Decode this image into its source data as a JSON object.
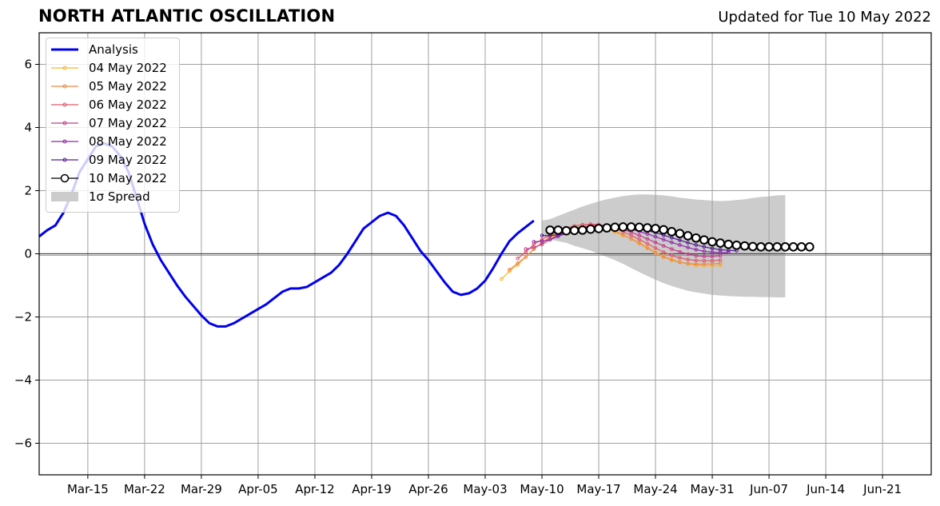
{
  "header": {
    "title": "NORTH ATLANTIC OSCILLATION",
    "updated": "Updated for Tue 10 May 2022"
  },
  "legend": {
    "items": [
      {
        "label": "Analysis",
        "color": "#0000ee",
        "style": "thick-line"
      },
      {
        "label": "04 May 2022",
        "color": "#fcb52c",
        "style": "marker-line"
      },
      {
        "label": "05 May 2022",
        "color": "#ed8a44",
        "style": "marker-line"
      },
      {
        "label": "06 May 2022",
        "color": "#e0576a",
        "style": "marker-line"
      },
      {
        "label": "07 May 2022",
        "color": "#c23d8c",
        "style": "marker-line"
      },
      {
        "label": "08 May 2022",
        "color": "#8e2ba6",
        "style": "marker-line"
      },
      {
        "label": "09 May 2022",
        "color": "#531b93",
        "style": "marker-line"
      },
      {
        "label": "10 May 2022",
        "color": "#000000",
        "style": "open-marker"
      },
      {
        "label": "1σ Spread",
        "color": "#cccccc",
        "style": "patch"
      }
    ]
  },
  "chart_data": {
    "type": "line",
    "title": "NORTH ATLANTIC OSCILLATION",
    "xlabel": "",
    "ylabel": "",
    "xlim": [
      "2022-03-09",
      "2022-06-27"
    ],
    "ylim": [
      -7,
      7
    ],
    "yticks": [
      -6,
      -4,
      -2,
      0,
      2,
      4,
      6
    ],
    "ytick_labels": [
      "−6",
      "−4",
      "−2",
      "0",
      "2",
      "4",
      "6"
    ],
    "xtick_dates": [
      "2022-03-15",
      "2022-03-22",
      "2022-03-29",
      "2022-04-05",
      "2022-04-12",
      "2022-04-19",
      "2022-04-26",
      "2022-05-03",
      "2022-05-10",
      "2022-05-17",
      "2022-05-24",
      "2022-05-31",
      "2022-06-07",
      "2022-06-14",
      "2022-06-21"
    ],
    "xtick_labels": [
      "Mar-15",
      "Mar-22",
      "Mar-29",
      "Apr-05",
      "Apr-12",
      "Apr-19",
      "Apr-26",
      "May-03",
      "May-10",
      "May-17",
      "May-24",
      "May-31",
      "Jun-07",
      "Jun-14",
      "Jun-21"
    ],
    "grid": true,
    "legend_position": "top-left",
    "analysis": {
      "name": "Analysis",
      "color": "#0000ee",
      "start": "2022-03-09",
      "values": [
        0.55,
        0.75,
        0.9,
        1.3,
        1.9,
        2.6,
        3.0,
        3.4,
        3.5,
        3.4,
        3.1,
        2.6,
        1.8,
        0.95,
        0.3,
        -0.2,
        -0.6,
        -1.0,
        -1.35,
        -1.65,
        -1.95,
        -2.2,
        -2.3,
        -2.3,
        -2.2,
        -2.05,
        -1.9,
        -1.75,
        -1.6,
        -1.4,
        -1.2,
        -1.1,
        -1.1,
        -1.05,
        -0.9,
        -0.75,
        -0.6,
        -0.35,
        0.0,
        0.4,
        0.8,
        1.0,
        1.2,
        1.3,
        1.2,
        0.9,
        0.5,
        0.1,
        -0.2,
        -0.55,
        -0.9,
        -1.2,
        -1.3,
        -1.25,
        -1.1,
        -0.85,
        -0.45,
        0.0,
        0.4,
        0.65,
        0.85,
        1.05
      ]
    },
    "spread": {
      "name": "1σ Spread",
      "color": "#cccccc",
      "start": "2022-05-10",
      "upper": [
        1.05,
        1.1,
        1.2,
        1.3,
        1.4,
        1.5,
        1.58,
        1.66,
        1.73,
        1.78,
        1.83,
        1.86,
        1.88,
        1.88,
        1.87,
        1.85,
        1.82,
        1.78,
        1.75,
        1.72,
        1.7,
        1.68,
        1.67,
        1.68,
        1.7,
        1.73,
        1.77,
        1.8,
        1.82,
        1.85,
        1.86
      ],
      "lower": [
        0.55,
        0.45,
        0.4,
        0.35,
        0.25,
        0.18,
        0.1,
        0.0,
        -0.1,
        -0.2,
        -0.32,
        -0.45,
        -0.58,
        -0.7,
        -0.82,
        -0.93,
        -1.02,
        -1.1,
        -1.17,
        -1.22,
        -1.26,
        -1.3,
        -1.32,
        -1.34,
        -1.35,
        -1.36,
        -1.36,
        -1.37,
        -1.37,
        -1.38,
        -1.38
      ]
    },
    "series": [
      {
        "name": "04 May 2022",
        "color": "#fcb52c",
        "start": "2022-05-05",
        "values": [
          -0.8,
          -0.55,
          -0.35,
          -0.1,
          0.15,
          0.35,
          0.5,
          0.65,
          0.75,
          0.82,
          0.87,
          0.88,
          0.85,
          0.78,
          0.68,
          0.58,
          0.48,
          0.35,
          0.2,
          0.05,
          -0.08,
          -0.18,
          -0.26,
          -0.32,
          -0.36,
          -0.38,
          -0.38,
          -0.37
        ]
      },
      {
        "name": "05 May 2022",
        "color": "#ed8a44",
        "start": "2022-05-06",
        "values": [
          -0.5,
          -0.3,
          -0.1,
          0.15,
          0.35,
          0.55,
          0.7,
          0.8,
          0.88,
          0.92,
          0.93,
          0.9,
          0.82,
          0.72,
          0.6,
          0.47,
          0.33,
          0.18,
          0.03,
          -0.1,
          -0.2,
          -0.27,
          -0.31,
          -0.33,
          -0.33,
          -0.32,
          -0.3
        ]
      },
      {
        "name": "06 May 2022",
        "color": "#e0576a",
        "start": "2022-05-07",
        "values": [
          -0.15,
          0.05,
          0.3,
          0.45,
          0.6,
          0.72,
          0.82,
          0.88,
          0.92,
          0.94,
          0.93,
          0.88,
          0.8,
          0.7,
          0.58,
          0.45,
          0.32,
          0.18,
          0.05,
          -0.05,
          -0.13,
          -0.18,
          -0.21,
          -0.22,
          -0.22,
          -0.2
        ]
      },
      {
        "name": "07 May 2022",
        "color": "#c23d8c",
        "start": "2022-05-08",
        "values": [
          0.15,
          0.2,
          0.3,
          0.45,
          0.6,
          0.72,
          0.8,
          0.85,
          0.88,
          0.9,
          0.88,
          0.84,
          0.77,
          0.68,
          0.58,
          0.47,
          0.36,
          0.25,
          0.15,
          0.06,
          -0.01,
          -0.06,
          -0.08,
          -0.08,
          -0.06
        ]
      },
      {
        "name": "08 May 2022",
        "color": "#8e2ba6",
        "start": "2022-05-09",
        "values": [
          0.38,
          0.4,
          0.45,
          0.55,
          0.65,
          0.75,
          0.8,
          0.84,
          0.86,
          0.87,
          0.86,
          0.83,
          0.78,
          0.71,
          0.63,
          0.54,
          0.45,
          0.36,
          0.28,
          0.2,
          0.13,
          0.08,
          0.05,
          0.04,
          0.04
        ]
      },
      {
        "name": "09 May 2022",
        "color": "#531b93",
        "start": "2022-05-10",
        "values": [
          0.58,
          0.58,
          0.6,
          0.65,
          0.7,
          0.75,
          0.79,
          0.82,
          0.84,
          0.85,
          0.85,
          0.83,
          0.79,
          0.74,
          0.67,
          0.59,
          0.51,
          0.43,
          0.35,
          0.28,
          0.22,
          0.17,
          0.13,
          0.11,
          0.1
        ]
      },
      {
        "name": "10 May 2022",
        "color": "#000000",
        "start": "2022-05-11",
        "open_markers": true,
        "values": [
          0.75,
          0.75,
          0.73,
          0.74,
          0.75,
          0.78,
          0.8,
          0.82,
          0.84,
          0.85,
          0.85,
          0.84,
          0.82,
          0.8,
          0.76,
          0.7,
          0.64,
          0.57,
          0.5,
          0.44,
          0.38,
          0.34,
          0.3,
          0.27,
          0.25,
          0.23,
          0.22,
          0.22,
          0.22,
          0.22,
          0.22,
          0.22,
          0.22
        ]
      }
    ]
  }
}
